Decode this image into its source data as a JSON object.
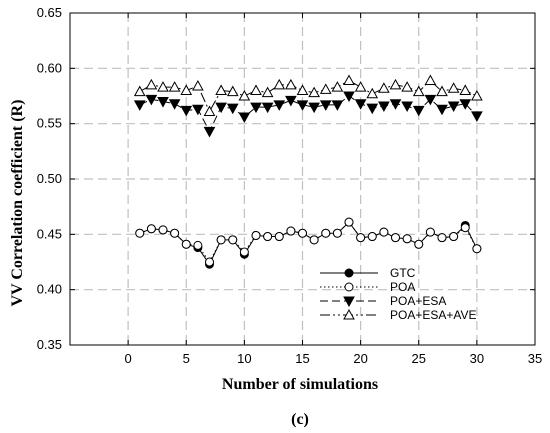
{
  "chart_data": {
    "type": "line",
    "title": "",
    "xlabel": "Number of simulations",
    "ylabel": "VV Correlation coefficient (R)",
    "panel_label": "(c)",
    "xlim": [
      -5,
      35
    ],
    "ylim": [
      0.35,
      0.65
    ],
    "xticks": [
      0,
      5,
      10,
      15,
      20,
      25,
      30,
      35
    ],
    "yticks": [
      "0.35",
      "0.40",
      "0.45",
      "0.50",
      "0.55",
      "0.60",
      "0.65"
    ],
    "grid": true,
    "legend_position": "bottom-right",
    "x": [
      1,
      2,
      3,
      4,
      5,
      6,
      7,
      8,
      9,
      10,
      11,
      12,
      13,
      14,
      15,
      16,
      17,
      18,
      19,
      20,
      21,
      22,
      23,
      24,
      25,
      26,
      27,
      28,
      29,
      30
    ],
    "series": [
      {
        "name": "GTC",
        "line": "solid",
        "marker": "filled-circle",
        "values": [
          0.451,
          0.455,
          0.454,
          0.451,
          0.441,
          0.438,
          0.423,
          0.445,
          0.445,
          0.432,
          0.449,
          0.448,
          0.448,
          0.453,
          0.451,
          0.445,
          0.451,
          0.451,
          0.461,
          0.447,
          0.448,
          0.452,
          0.447,
          0.446,
          0.441,
          0.452,
          0.447,
          0.448,
          0.458,
          0.437
        ]
      },
      {
        "name": "POA",
        "line": "dotted",
        "marker": "open-circle",
        "values": [
          0.451,
          0.455,
          0.454,
          0.451,
          0.441,
          0.44,
          0.425,
          0.445,
          0.445,
          0.434,
          0.449,
          0.448,
          0.448,
          0.453,
          0.451,
          0.445,
          0.451,
          0.451,
          0.461,
          0.447,
          0.448,
          0.452,
          0.447,
          0.446,
          0.441,
          0.452,
          0.447,
          0.448,
          0.456,
          0.437
        ]
      },
      {
        "name": "POA+ESA",
        "line": "dashed",
        "marker": "filled-triangle-down",
        "values": [
          0.567,
          0.572,
          0.57,
          0.568,
          0.562,
          0.563,
          0.543,
          0.565,
          0.564,
          0.556,
          0.565,
          0.565,
          0.567,
          0.571,
          0.567,
          0.565,
          0.567,
          0.567,
          0.575,
          0.568,
          0.564,
          0.566,
          0.568,
          0.566,
          0.562,
          0.572,
          0.563,
          0.566,
          0.568,
          0.557
        ]
      },
      {
        "name": "POA+ESA+AVE",
        "line": "dash-dot-dot",
        "marker": "open-triangle-up",
        "values": [
          0.579,
          0.585,
          0.583,
          0.583,
          0.58,
          0.584,
          0.561,
          0.58,
          0.579,
          0.575,
          0.58,
          0.578,
          0.585,
          0.585,
          0.58,
          0.578,
          0.581,
          0.583,
          0.589,
          0.583,
          0.577,
          0.582,
          0.585,
          0.583,
          0.579,
          0.589,
          0.579,
          0.582,
          0.58,
          0.575
        ]
      }
    ],
    "colors": {
      "axis": "#000000",
      "grid": "#c0c0c0",
      "series": "#000000",
      "background": "#ffffff"
    }
  }
}
